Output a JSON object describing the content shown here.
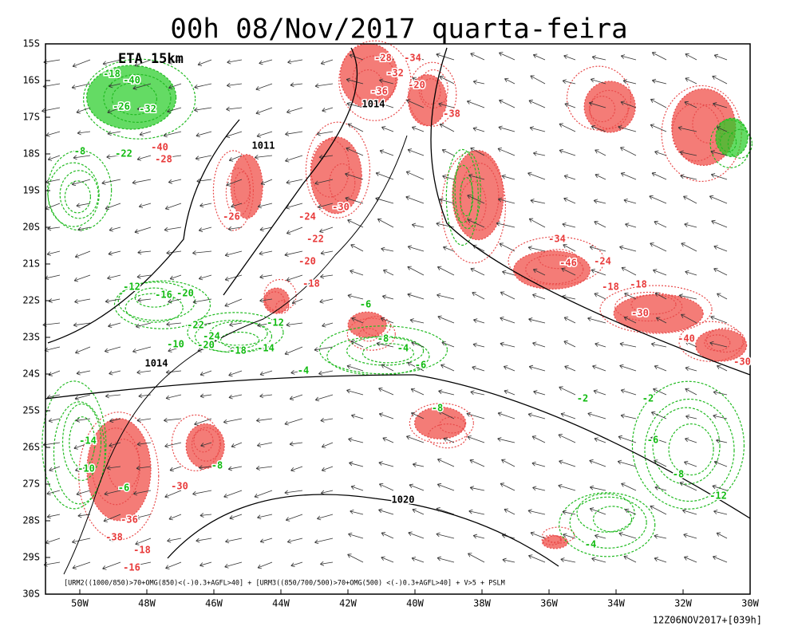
{
  "title": "00h 08/Nov/2017 quarta-feira",
  "model": "ETA 15km",
  "lat_labels": [
    "15S",
    "16S",
    "17S",
    "18S",
    "19S",
    "20S",
    "21S",
    "22S",
    "23S",
    "24S",
    "25S",
    "26S",
    "27S",
    "28S",
    "29S",
    "30S"
  ],
  "lon_labels": [
    "50W",
    "48W",
    "46W",
    "44W",
    "42W",
    "40W",
    "38W",
    "36W",
    "34W",
    "32W",
    "30W"
  ],
  "legend": "[URM2((1000/850)>70+OMG(850)<(-)0.3+AGFL>40] + [URM3((850/700/500)>70+OMG(500) <(-)0.3+AGFL>40] + V>5 + PSLM",
  "run": "12Z06NOV2017+[039h]",
  "isobar_labels": [
    "1014",
    "1011",
    "1014",
    "1020"
  ],
  "red_labels": [
    "-28",
    "-34",
    "-32",
    "-20",
    "-36",
    "-38",
    "-26",
    "-24",
    "-30",
    "-22",
    "-20",
    "-18",
    "-34",
    "-46",
    "-24",
    "-18",
    "-18",
    "-30",
    "-40",
    "-30",
    "-30",
    "-36",
    "-38",
    "-18",
    "-16",
    "-28",
    "-40"
  ],
  "green_labels": [
    "-18",
    "-40",
    "-26",
    "-32",
    "-22",
    "-8",
    "-12",
    "-16",
    "-20",
    "-22",
    "-24",
    "-10",
    "-20",
    "-18",
    "-12",
    "-14",
    "-6",
    "-8",
    "-4",
    "-6",
    "-4",
    "-8",
    "-2",
    "-2",
    "-6",
    "-8",
    "-12",
    "-4",
    "-14",
    "-10",
    "-6",
    "-8"
  ]
}
